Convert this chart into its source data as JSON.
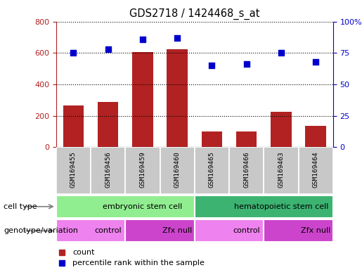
{
  "title": "GDS2718 / 1424468_s_at",
  "samples": [
    "GSM169455",
    "GSM169456",
    "GSM169459",
    "GSM169460",
    "GSM169465",
    "GSM169466",
    "GSM169463",
    "GSM169464"
  ],
  "counts": [
    265,
    290,
    605,
    625,
    100,
    100,
    225,
    135
  ],
  "percentile_ranks": [
    75,
    78,
    86,
    87,
    65,
    66,
    75,
    68
  ],
  "left_ylim": [
    0,
    800
  ],
  "right_ylim": [
    0,
    100
  ],
  "left_yticks": [
    0,
    200,
    400,
    600,
    800
  ],
  "right_yticks": [
    0,
    25,
    50,
    75,
    100
  ],
  "right_yticklabels": [
    "0",
    "25",
    "50",
    "75",
    "100%"
  ],
  "bar_color": "#B22222",
  "dot_color": "#0000CD",
  "cell_type_groups": [
    {
      "label": "embryonic stem cell",
      "start": 0,
      "end": 4,
      "color": "#90EE90"
    },
    {
      "label": "hematopoietic stem cell",
      "start": 4,
      "end": 8,
      "color": "#3CB371"
    }
  ],
  "genotype_groups": [
    {
      "label": "control",
      "start": 0,
      "end": 2,
      "color": "#EE82EE"
    },
    {
      "label": "Zfx null",
      "start": 2,
      "end": 4,
      "color": "#CC44CC"
    },
    {
      "label": "control",
      "start": 4,
      "end": 6,
      "color": "#EE82EE"
    },
    {
      "label": "Zfx null",
      "start": 6,
      "end": 8,
      "color": "#CC44CC"
    }
  ],
  "legend_count_color": "#B22222",
  "legend_pct_color": "#0000CD",
  "count_label": "count",
  "pct_label": "percentile rank within the sample",
  "sample_bg_color": "#C8C8C8",
  "left_label_color": "#B22222",
  "right_label_color": "#0000CD"
}
